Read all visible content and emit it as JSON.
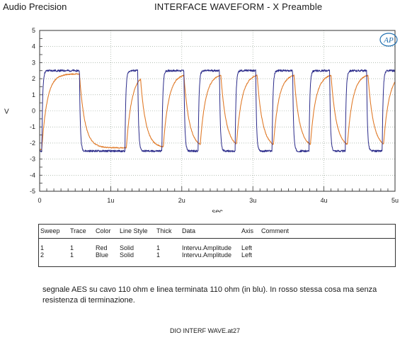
{
  "header": {
    "left_title": "Audio Precision",
    "title": "INTERFACE WAVEFORM - X  Preamble"
  },
  "logo": {
    "text": "AP"
  },
  "chart_data": {
    "type": "line",
    "title": "INTERFACE WAVEFORM - X  Preamble",
    "xlabel": "sec",
    "ylabel": "V",
    "xlim": [
      0,
      5
    ],
    "x_unit": "u",
    "ylim": [
      -5,
      5
    ],
    "x_ticks": [
      {
        "value": 0,
        "label": "0"
      },
      {
        "value": 1,
        "label": "1u"
      },
      {
        "value": 2,
        "label": "2u"
      },
      {
        "value": 3,
        "label": "3u"
      },
      {
        "value": 4,
        "label": "4u"
      },
      {
        "value": 5,
        "label": "5u"
      }
    ],
    "y_ticks": [
      5,
      4,
      3,
      2,
      1,
      0,
      -1,
      -2,
      -3,
      -4,
      -5
    ],
    "grid": true,
    "series": [
      {
        "sweep": 1,
        "color": "#e07b2a",
        "style": "Solid",
        "thickness": 1,
        "tau": 0.075,
        "amplitude": 2.3,
        "transitions": [
          0.03,
          0.56,
          1.22,
          1.42,
          1.74,
          2.03,
          2.26,
          2.55,
          2.77,
          3.06,
          3.29,
          3.58,
          3.81,
          4.1,
          4.33,
          4.62,
          4.84
        ],
        "initial_level": -2.4
      },
      {
        "sweep": 2,
        "color": "#2b2b8a",
        "style": "Solid",
        "thickness": 1,
        "tau": 0.012,
        "amplitude": 2.5,
        "transitions": [
          0.03,
          0.56,
          1.2,
          1.38,
          1.72,
          2.03,
          2.23,
          2.53,
          2.75,
          3.04,
          3.27,
          3.56,
          3.79,
          4.08,
          4.3,
          4.6,
          4.82
        ],
        "initial_level": -2.5
      }
    ]
  },
  "table": {
    "headers": [
      "Sweep",
      "Trace",
      "Color",
      "Line Style",
      "Thick",
      "Data",
      "Axis",
      "Comment"
    ],
    "rows": [
      [
        "1",
        "1",
        "Red",
        "Solid",
        "1",
        "Intervu.Amplitude",
        "Left",
        ""
      ],
      [
        "2",
        "1",
        "Blue",
        "Solid",
        "1",
        "Intervu.Amplitude",
        "Left",
        ""
      ]
    ]
  },
  "note": "segnale AES su cavo 110 ohm e  linea terminata 110 ohm (in blu). In rosso stessa cosa ma senza resistenza di terminazione.",
  "footer": "DIO INTERF WAVE.at27"
}
